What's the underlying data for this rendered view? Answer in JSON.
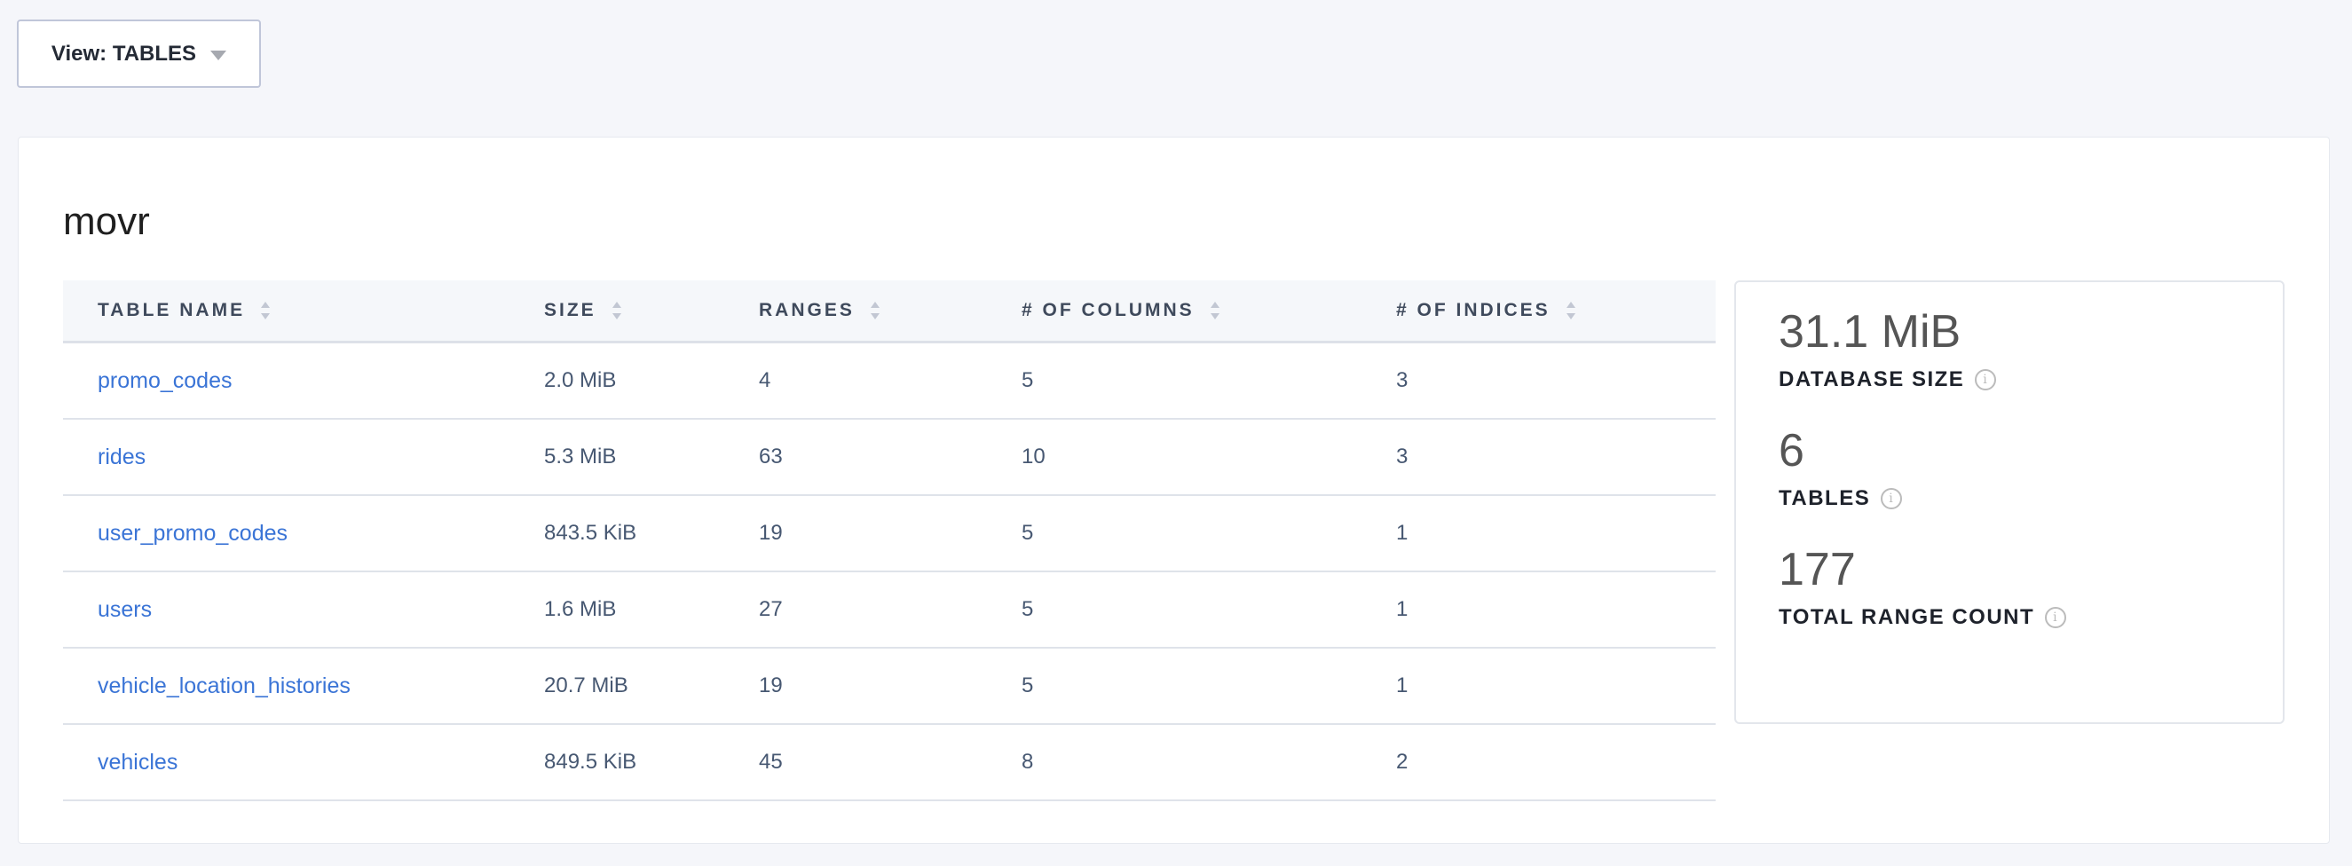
{
  "view_selector": {
    "label": "View: TABLES",
    "icon": "caret-down-icon"
  },
  "database": {
    "name": "movr"
  },
  "table": {
    "columns": [
      "TABLE NAME",
      "SIZE",
      "RANGES",
      "# OF COLUMNS",
      "# OF INDICES"
    ],
    "rows": [
      [
        "promo_codes",
        "2.0 MiB",
        "4",
        "5",
        "3"
      ],
      [
        "rides",
        "5.3 MiB",
        "63",
        "10",
        "3"
      ],
      [
        "user_promo_codes",
        "843.5 KiB",
        "19",
        "5",
        "1"
      ],
      [
        "users",
        "1.6 MiB",
        "27",
        "5",
        "1"
      ],
      [
        "vehicle_location_histories",
        "20.7 MiB",
        "19",
        "5",
        "1"
      ],
      [
        "vehicles",
        "849.5 KiB",
        "45",
        "8",
        "2"
      ]
    ]
  },
  "stats": [
    {
      "value": "31.1 MiB",
      "label": "DATABASE SIZE"
    },
    {
      "value": "6",
      "label": "TABLES"
    },
    {
      "value": "177",
      "label": "TOTAL RANGE COUNT"
    }
  ],
  "colors": {
    "link": "#3a74d6",
    "background": "#f5f6fa"
  }
}
